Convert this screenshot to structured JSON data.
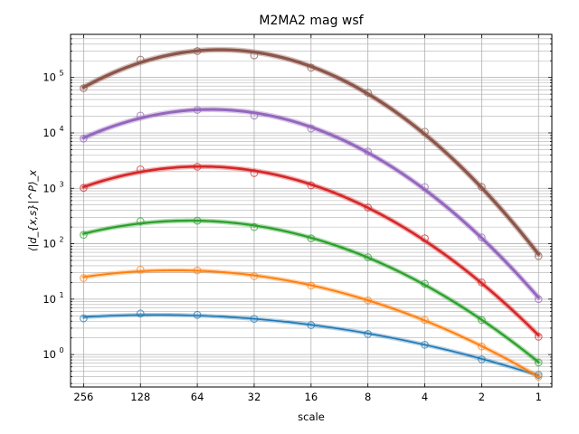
{
  "chart_data": {
    "type": "line",
    "title": "M2MA2 mag wsf",
    "xlabel": "scale",
    "ylabel": "⟨|d_{x,s}|^P⟩_x",
    "x_scale": "log2-reversed",
    "y_scale": "log10",
    "grid": true,
    "xlim": [
      300,
      0.85
    ],
    "ylim": [
      0.26,
      600000
    ],
    "x_ticks": [
      256,
      128,
      64,
      32,
      16,
      8,
      4,
      2,
      1
    ],
    "x_tick_labels": [
      "256",
      "128",
      "64",
      "32",
      "16",
      "8",
      "4",
      "2",
      "1"
    ],
    "y_ticks": [
      1,
      10,
      100,
      1000,
      10000,
      100000
    ],
    "y_tick_labels": [
      {
        "base": "10",
        "exp": "0"
      },
      {
        "base": "10",
        "exp": "1"
      },
      {
        "base": "10",
        "exp": "2"
      },
      {
        "base": "10",
        "exp": "3"
      },
      {
        "base": "10",
        "exp": "4"
      },
      {
        "base": "10",
        "exp": "5"
      }
    ],
    "x": [
      256,
      128,
      64,
      32,
      16,
      8,
      4,
      2,
      1
    ],
    "series": [
      {
        "color": "#1f77b4",
        "values": [
          4.5,
          5.5,
          5.2,
          4.4,
          3.4,
          2.35,
          1.5,
          0.82,
          0.43
        ]
      },
      {
        "color": "#ff7f0e",
        "values": [
          24,
          34,
          33,
          26,
          17.5,
          9.5,
          4.2,
          1.4,
          0.4
        ]
      },
      {
        "color": "#2ca02c",
        "values": [
          145,
          255,
          260,
          200,
          125,
          57,
          19,
          4.2,
          0.72
        ]
      },
      {
        "color": "#d62728",
        "values": [
          1020,
          2200,
          2450,
          1880,
          1130,
          450,
          125,
          20,
          2.1
        ]
      },
      {
        "color": "#9467bd",
        "values": [
          7900,
          20500,
          26000,
          20500,
          12000,
          4600,
          1050,
          130,
          10
        ]
      },
      {
        "color": "#8c564b",
        "values": [
          64000,
          210000,
          300000,
          250000,
          150000,
          53000,
          10500,
          1060,
          60
        ]
      }
    ]
  }
}
